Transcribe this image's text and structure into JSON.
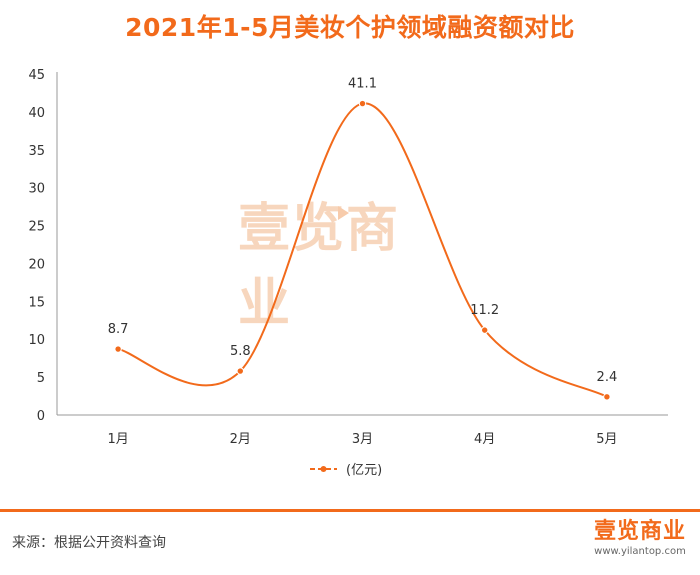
{
  "title": "2021年1-5月美妆个护领域融资额对比",
  "watermark": "壹览商业",
  "source": "来源：根据公开资料查询",
  "brand": {
    "name": "壹览商业",
    "url": "www.yilantop.com"
  },
  "colors": {
    "accent": "#f26a1b",
    "axis": "#999999",
    "text": "#333333"
  },
  "chart_data": {
    "type": "line",
    "title": "2021年1-5月美妆个护领域融资额对比",
    "categories": [
      "1月",
      "2月",
      "3月",
      "4月",
      "5月"
    ],
    "series": [
      {
        "name": "(亿元)",
        "values": [
          8.7,
          5.8,
          41.1,
          11.2,
          2.4
        ]
      }
    ],
    "data_labels": [
      "8.7",
      "5.8",
      "41.1",
      "11.2",
      "2.4"
    ],
    "y_ticks": [
      0,
      5,
      10,
      15,
      20,
      25,
      30,
      35,
      40,
      45
    ],
    "ylim": [
      0,
      45
    ],
    "xlabel": "",
    "ylabel": "",
    "legend": "bottom-center",
    "grid": false,
    "smooth": true
  }
}
